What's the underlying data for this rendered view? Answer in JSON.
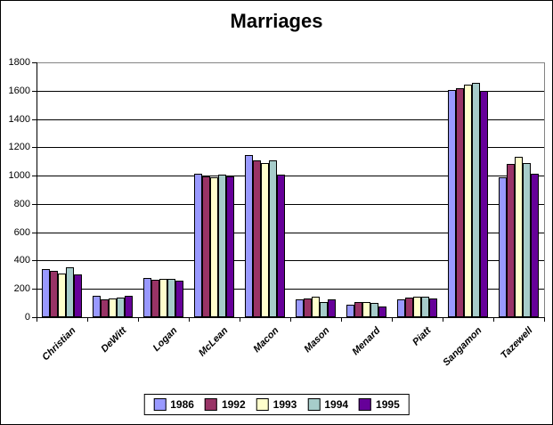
{
  "title": "Marriages",
  "chart_data": {
    "type": "bar",
    "title": "Marriages",
    "xlabel": "",
    "ylabel": "",
    "ylim": [
      0,
      1800
    ],
    "ytick_interval": 200,
    "yticks": [
      0,
      200,
      400,
      600,
      800,
      1000,
      1200,
      1400,
      1600,
      1800
    ],
    "grid": true,
    "legend_position": "bottom",
    "categories": [
      "Christian",
      "DeWitt",
      "Logan",
      "McLean",
      "Macon",
      "Mason",
      "Menard",
      "Piatt",
      "Sangamon",
      "Tazewell"
    ],
    "series": [
      {
        "name": "1986",
        "color": "#9999FF",
        "values": [
          340,
          150,
          280,
          1015,
          1145,
          125,
          90,
          125,
          1605,
          985
        ]
      },
      {
        "name": "1992",
        "color": "#993366",
        "values": [
          330,
          125,
          265,
          995,
          1105,
          130,
          110,
          140,
          1620,
          1085
        ]
      },
      {
        "name": "1993",
        "color": "#FFFFCC",
        "values": [
          310,
          130,
          270,
          990,
          1090,
          145,
          108,
          145,
          1645,
          1135
        ]
      },
      {
        "name": "1994",
        "color": "#A6CCCA",
        "values": [
          355,
          140,
          270,
          1005,
          1110,
          110,
          98,
          145,
          1655,
          1090
        ]
      },
      {
        "name": "1995",
        "color": "#660099",
        "values": [
          300,
          150,
          260,
          995,
          1005,
          125,
          78,
          130,
          1600,
          1015
        ]
      }
    ]
  },
  "colors": {
    "plot_border_gray": "#848484",
    "gridline": "#000000",
    "background": "#FFFFFF"
  }
}
